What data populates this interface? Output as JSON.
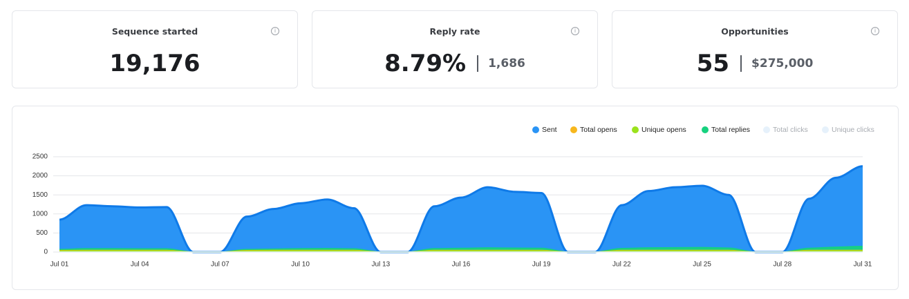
{
  "cards": [
    {
      "title": "Sequence started",
      "value": "19,176"
    },
    {
      "title": "Reply rate",
      "value": "8.79%",
      "secondary": "1,686"
    },
    {
      "title": "Opportunities",
      "value": "55",
      "secondary": "$275,000"
    }
  ],
  "chart_data": {
    "type": "area",
    "categories": [
      "Jul 01",
      null,
      null,
      "Jul 04",
      null,
      null,
      "Jul 07",
      null,
      null,
      "Jul 10",
      null,
      null,
      "Jul 13",
      null,
      null,
      "Jul 16",
      null,
      null,
      "Jul 19",
      null,
      null,
      "Jul 22",
      null,
      null,
      "Jul 25",
      null,
      null,
      "Jul 28",
      null,
      null,
      "Jul 31"
    ],
    "series": [
      {
        "name": "Sent",
        "color": "#2a94f5",
        "values": [
          850,
          1230,
          1200,
          1170,
          1180,
          0,
          0,
          930,
          1130,
          1280,
          1380,
          1150,
          0,
          0,
          1200,
          1430,
          1700,
          1580,
          1550,
          0,
          0,
          1230,
          1600,
          1700,
          1740,
          1500,
          0,
          0,
          1400,
          1950,
          2250
        ]
      },
      {
        "name": "Total opens",
        "color": "#f7b71d",
        "values": [
          40,
          45,
          45,
          45,
          45,
          0,
          0,
          40,
          45,
          45,
          45,
          45,
          0,
          0,
          45,
          45,
          45,
          45,
          45,
          0,
          0,
          45,
          45,
          45,
          45,
          45,
          0,
          0,
          45,
          45,
          45
        ]
      },
      {
        "name": "Unique opens",
        "color": "#9be21c",
        "values": [
          30,
          35,
          35,
          35,
          35,
          0,
          0,
          30,
          35,
          35,
          35,
          35,
          0,
          0,
          35,
          35,
          35,
          35,
          35,
          0,
          0,
          35,
          35,
          35,
          35,
          35,
          0,
          0,
          35,
          35,
          35
        ]
      },
      {
        "name": "Total replies",
        "color": "#16d17f",
        "values": [
          70,
          90,
          90,
          85,
          85,
          0,
          0,
          70,
          80,
          90,
          95,
          85,
          0,
          0,
          90,
          100,
          110,
          105,
          100,
          0,
          0,
          95,
          110,
          115,
          120,
          105,
          0,
          0,
          100,
          130,
          150
        ]
      },
      {
        "name": "Total clicks",
        "color": "#e6f1fb",
        "hidden": true,
        "values": [
          0,
          0,
          0,
          0,
          0,
          0,
          0,
          0,
          0,
          0,
          0,
          0,
          0,
          0,
          0,
          0,
          0,
          0,
          0,
          0,
          0,
          0,
          0,
          0,
          0,
          0,
          0,
          0,
          0,
          0,
          0
        ]
      },
      {
        "name": "Unique clicks",
        "color": "#e6f1fb",
        "hidden": true,
        "values": [
          0,
          0,
          0,
          0,
          0,
          0,
          0,
          0,
          0,
          0,
          0,
          0,
          0,
          0,
          0,
          0,
          0,
          0,
          0,
          0,
          0,
          0,
          0,
          0,
          0,
          0,
          0,
          0,
          0,
          0,
          0
        ]
      }
    ],
    "ylim": [
      0,
      2500
    ],
    "yticks": [
      0,
      500,
      1000,
      1500,
      2000,
      2500
    ],
    "grid": true,
    "legend": "top-right"
  }
}
